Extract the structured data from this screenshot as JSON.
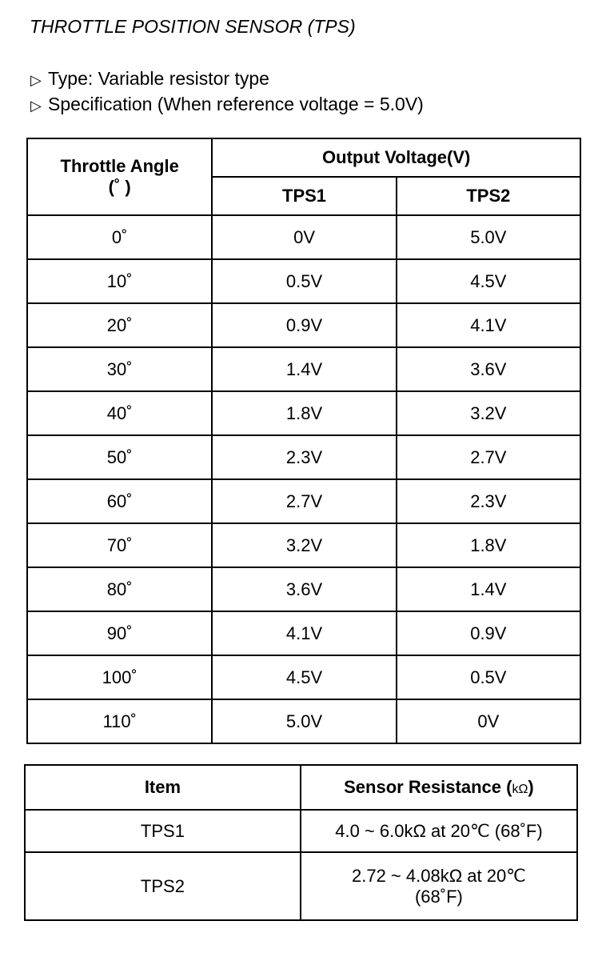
{
  "title": "THROTTLE POSITION SENSOR (TPS)",
  "bullets": [
    {
      "icon": "triangle-right-outline-icon",
      "text": "Type: Variable resistor type"
    },
    {
      "icon": "triangle-right-outline-icon",
      "text": "Specification (When reference voltage = 5.0V)"
    }
  ],
  "voltage_table": {
    "angle_header": "Throttle Angle",
    "angle_unit": "(˚ )",
    "output_header": "Output Voltage(V)",
    "columns": [
      "TPS1",
      "TPS2"
    ],
    "rows": [
      [
        "0˚",
        "0V",
        "5.0V"
      ],
      [
        "10˚",
        "0.5V",
        "4.5V"
      ],
      [
        "20˚",
        "0.9V",
        "4.1V"
      ],
      [
        "30˚",
        "1.4V",
        "3.6V"
      ],
      [
        "40˚",
        "1.8V",
        "3.2V"
      ],
      [
        "50˚",
        "2.3V",
        "2.7V"
      ],
      [
        "60˚",
        "2.7V",
        "2.3V"
      ],
      [
        "70˚",
        "3.2V",
        "1.8V"
      ],
      [
        "80˚",
        "3.6V",
        "1.4V"
      ],
      [
        "90˚",
        "4.1V",
        "0.9V"
      ],
      [
        "100˚",
        "4.5V",
        "0.5V"
      ],
      [
        "110˚",
        "5.0V",
        "0V"
      ]
    ]
  },
  "resistance_table": {
    "item_header": "Item",
    "resistance_header": "Sensor Resistance (",
    "resistance_unit": "kΩ",
    "resistance_header_end": ")",
    "rows": [
      {
        "item": "TPS1",
        "value": "4.0 ~ 6.0kΩ at 20℃ (68˚F)"
      },
      {
        "item": "TPS2",
        "value": "2.72 ~ 4.08kΩ at 20℃",
        "value_line2": "(68˚F)"
      }
    ]
  }
}
